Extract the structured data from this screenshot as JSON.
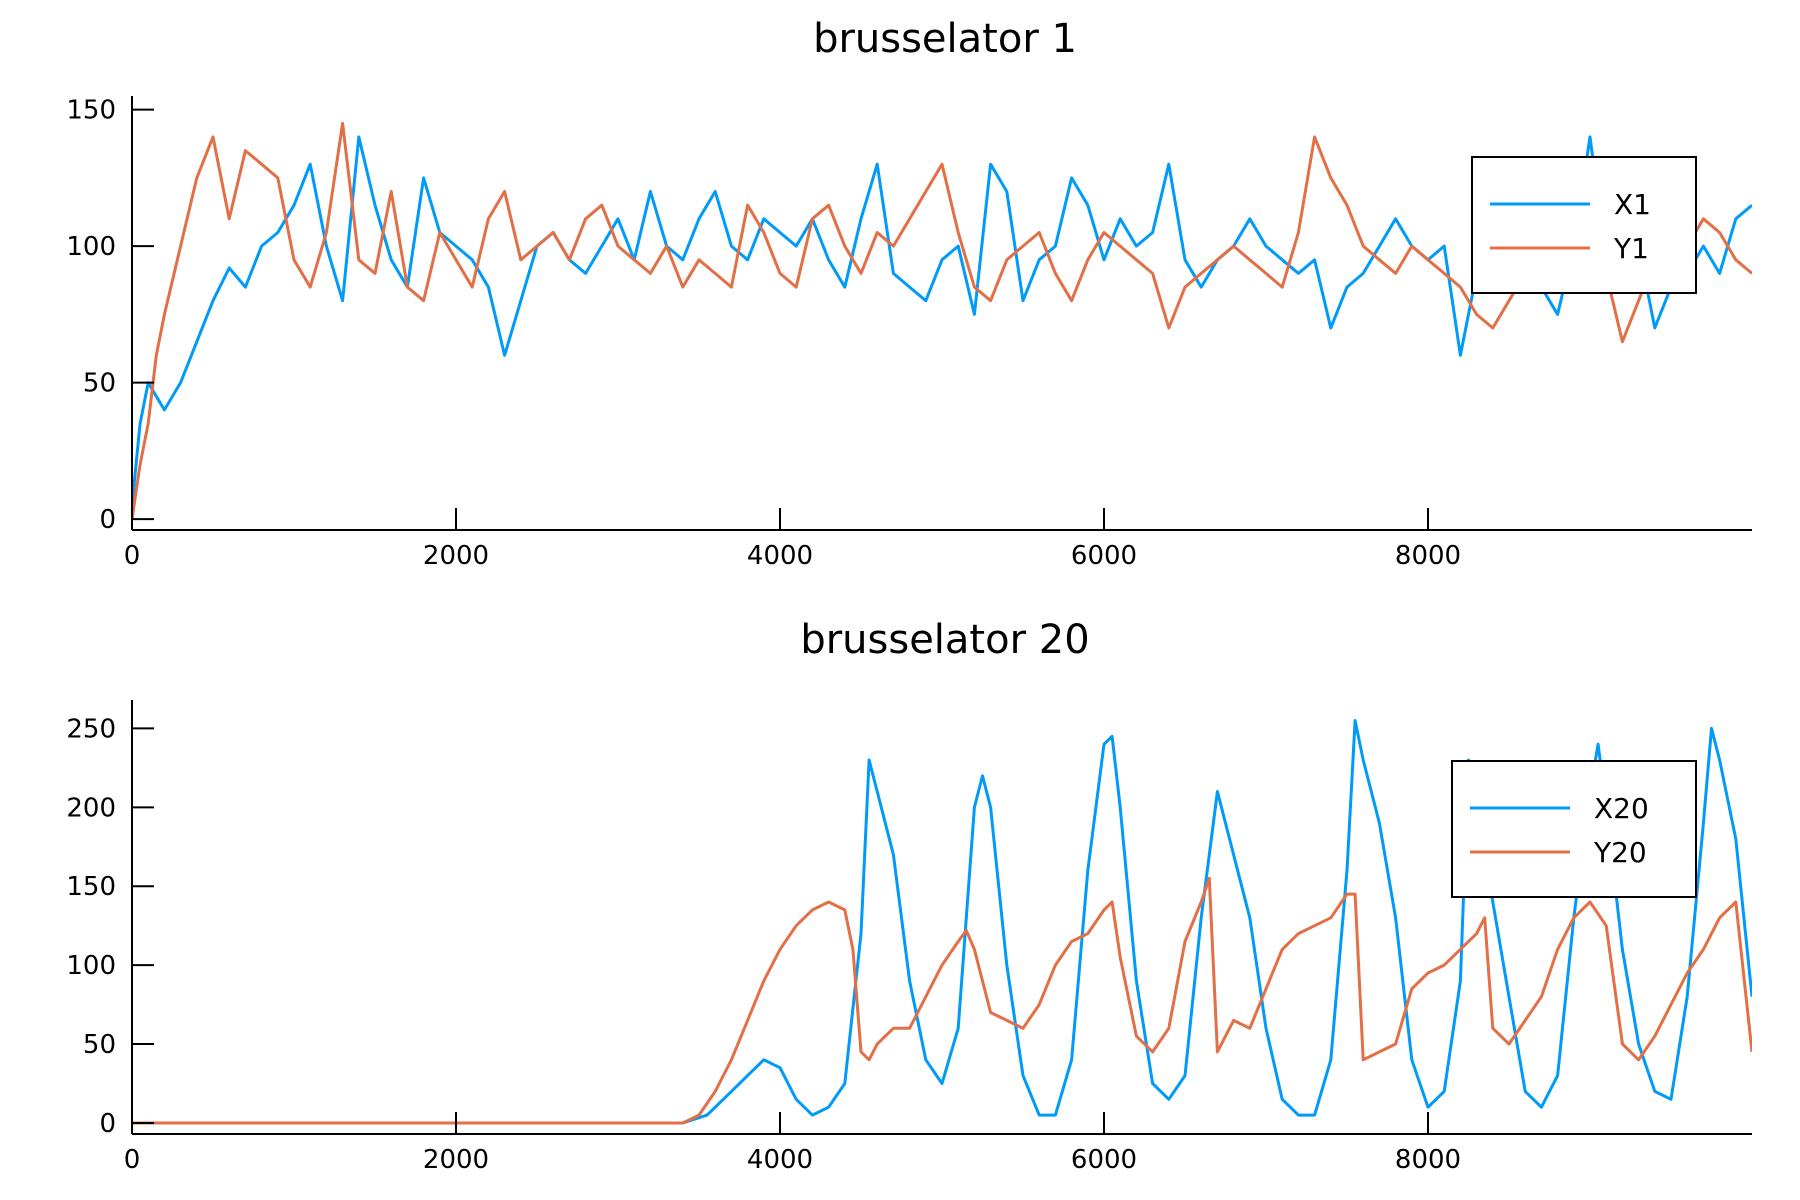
{
  "colors": {
    "X": "#009af9",
    "Y": "#e26f46",
    "axis": "#000000",
    "background": "#ffffff"
  },
  "chart_data": [
    {
      "type": "line",
      "title": "brusselator 1",
      "xlabel": "",
      "ylabel": "",
      "xlim": [
        0,
        10000
      ],
      "ylim": [
        -4,
        155
      ],
      "xticks": [
        0,
        2000,
        4000,
        6000,
        8000
      ],
      "xtick_labels": [
        "0",
        "2000",
        "4000",
        "6000",
        "8000"
      ],
      "yticks": [
        0,
        50,
        100,
        150
      ],
      "ytick_labels": [
        "0",
        "50",
        "100",
        "150"
      ],
      "grid": false,
      "legend_position": "top-right",
      "series": [
        {
          "name": "X1",
          "x": [
            0,
            50,
            100,
            150,
            200,
            300,
            400,
            500,
            600,
            700,
            800,
            900,
            1000,
            1100,
            1200,
            1300,
            1400,
            1500,
            1600,
            1700,
            1800,
            1900,
            2000,
            2100,
            2200,
            2300,
            2400,
            2500,
            2600,
            2700,
            2800,
            2900,
            3000,
            3100,
            3200,
            3300,
            3400,
            3500,
            3600,
            3700,
            3800,
            3900,
            4000,
            4100,
            4200,
            4300,
            4400,
            4500,
            4600,
            4700,
            4800,
            4900,
            5000,
            5100,
            5200,
            5300,
            5400,
            5500,
            5600,
            5700,
            5800,
            5900,
            6000,
            6100,
            6200,
            6300,
            6400,
            6500,
            6600,
            6700,
            6800,
            6900,
            7000,
            7100,
            7200,
            7300,
            7400,
            7500,
            7600,
            7700,
            7800,
            7900,
            8000,
            8100,
            8200,
            8300,
            8400,
            8500,
            8600,
            8700,
            8800,
            8900,
            9000,
            9100,
            9200,
            9300,
            9400,
            9500,
            9600,
            9700,
            9800,
            9900,
            10000
          ],
          "values": [
            5,
            35,
            50,
            45,
            40,
            50,
            65,
            80,
            92,
            85,
            100,
            105,
            115,
            130,
            100,
            80,
            140,
            115,
            95,
            85,
            125,
            105,
            100,
            95,
            85,
            60,
            80,
            100,
            105,
            95,
            90,
            100,
            110,
            95,
            120,
            100,
            95,
            110,
            120,
            100,
            95,
            110,
            105,
            100,
            110,
            95,
            85,
            110,
            130,
            90,
            85,
            80,
            95,
            100,
            75,
            130,
            120,
            80,
            95,
            100,
            125,
            115,
            95,
            110,
            100,
            105,
            130,
            95,
            85,
            95,
            100,
            110,
            100,
            95,
            90,
            95,
            70,
            85,
            90,
            100,
            110,
            100,
            95,
            100,
            60,
            90,
            125,
            95,
            100,
            85,
            75,
            100,
            140,
            95,
            85,
            100,
            70,
            85,
            90,
            100,
            90,
            110,
            115
          ]
        },
        {
          "name": "Y1",
          "x": [
            0,
            50,
            100,
            150,
            200,
            300,
            400,
            500,
            600,
            700,
            800,
            900,
            1000,
            1100,
            1200,
            1300,
            1400,
            1500,
            1600,
            1700,
            1800,
            1900,
            2000,
            2100,
            2200,
            2300,
            2400,
            2500,
            2600,
            2700,
            2800,
            2900,
            3000,
            3100,
            3200,
            3300,
            3400,
            3500,
            3600,
            3700,
            3800,
            3900,
            4000,
            4100,
            4200,
            4300,
            4400,
            4500,
            4600,
            4700,
            4800,
            4900,
            5000,
            5100,
            5200,
            5300,
            5400,
            5500,
            5600,
            5700,
            5800,
            5900,
            6000,
            6100,
            6200,
            6300,
            6400,
            6500,
            6600,
            6700,
            6800,
            6900,
            7000,
            7100,
            7200,
            7300,
            7400,
            7500,
            7600,
            7700,
            7800,
            7900,
            8000,
            8100,
            8200,
            8300,
            8400,
            8500,
            8600,
            8700,
            8800,
            8900,
            9000,
            9100,
            9200,
            9300,
            9400,
            9500,
            9600,
            9700,
            9800,
            9900,
            10000
          ],
          "values": [
            0,
            20,
            35,
            60,
            75,
            100,
            125,
            140,
            110,
            135,
            130,
            125,
            95,
            85,
            105,
            145,
            95,
            90,
            120,
            85,
            80,
            105,
            95,
            85,
            110,
            120,
            95,
            100,
            105,
            95,
            110,
            115,
            100,
            95,
            90,
            100,
            85,
            95,
            90,
            85,
            115,
            105,
            90,
            85,
            110,
            115,
            100,
            90,
            105,
            100,
            110,
            120,
            130,
            105,
            85,
            80,
            95,
            100,
            105,
            90,
            80,
            95,
            105,
            100,
            95,
            90,
            70,
            85,
            90,
            95,
            100,
            95,
            90,
            85,
            105,
            140,
            125,
            115,
            100,
            95,
            90,
            100,
            95,
            90,
            85,
            75,
            70,
            80,
            90,
            100,
            110,
            130,
            120,
            90,
            65,
            80,
            95,
            90,
            100,
            110,
            105,
            95,
            90
          ]
        }
      ]
    },
    {
      "type": "line",
      "title": "brusselator 20",
      "xlabel": "",
      "ylabel": "",
      "xlim": [
        0,
        10000
      ],
      "ylim": [
        -7,
        268
      ],
      "xticks": [
        0,
        2000,
        4000,
        6000,
        8000
      ],
      "xtick_labels": [
        "0",
        "2000",
        "4000",
        "6000",
        "8000"
      ],
      "yticks": [
        0,
        50,
        100,
        150,
        200,
        250
      ],
      "ytick_labels": [
        "0",
        "50",
        "100",
        "150",
        "200",
        "250"
      ],
      "grid": false,
      "legend_position": "top-right",
      "series": [
        {
          "name": "X20",
          "x": [
            0,
            2900,
            3400,
            3550,
            3700,
            3800,
            3900,
            4000,
            4100,
            4200,
            4300,
            4400,
            4500,
            4550,
            4600,
            4700,
            4800,
            4900,
            5000,
            5100,
            5200,
            5250,
            5300,
            5400,
            5500,
            5600,
            5700,
            5800,
            5900,
            6000,
            6050,
            6100,
            6200,
            6300,
            6400,
            6500,
            6600,
            6700,
            6800,
            6900,
            7000,
            7100,
            7200,
            7300,
            7400,
            7500,
            7550,
            7600,
            7700,
            7800,
            7900,
            8000,
            8100,
            8200,
            8250,
            8300,
            8400,
            8500,
            8600,
            8700,
            8800,
            8900,
            9000,
            9050,
            9100,
            9200,
            9300,
            9400,
            9500,
            9600,
            9700,
            9750,
            9800,
            9900,
            10000
          ],
          "values": [
            0,
            0,
            0,
            5,
            20,
            30,
            40,
            35,
            15,
            5,
            10,
            25,
            120,
            230,
            210,
            170,
            90,
            40,
            25,
            60,
            200,
            220,
            200,
            100,
            30,
            5,
            5,
            40,
            160,
            240,
            245,
            200,
            90,
            25,
            15,
            30,
            130,
            210,
            170,
            130,
            60,
            15,
            5,
            5,
            40,
            160,
            255,
            230,
            190,
            130,
            40,
            10,
            20,
            90,
            230,
            200,
            140,
            80,
            20,
            10,
            30,
            130,
            210,
            240,
            200,
            110,
            50,
            20,
            15,
            80,
            190,
            250,
            230,
            180,
            80
          ]
        },
        {
          "name": "Y20",
          "x": [
            0,
            3400,
            3500,
            3600,
            3700,
            3800,
            3900,
            4000,
            4100,
            4200,
            4300,
            4400,
            4450,
            4500,
            4550,
            4600,
            4700,
            4800,
            4900,
            5000,
            5100,
            5150,
            5200,
            5300,
            5400,
            5500,
            5600,
            5700,
            5800,
            5900,
            6000,
            6050,
            6100,
            6200,
            6300,
            6400,
            6500,
            6600,
            6650,
            6700,
            6800,
            6900,
            7000,
            7100,
            7200,
            7300,
            7400,
            7500,
            7550,
            7600,
            7700,
            7800,
            7900,
            8000,
            8100,
            8200,
            8300,
            8350,
            8400,
            8500,
            8600,
            8700,
            8800,
            8900,
            9000,
            9100,
            9200,
            9300,
            9400,
            9500,
            9600,
            9700,
            9800,
            9900,
            10000
          ],
          "values": [
            0,
            0,
            5,
            20,
            40,
            65,
            90,
            110,
            125,
            135,
            140,
            135,
            110,
            45,
            40,
            50,
            60,
            60,
            80,
            100,
            115,
            122,
            110,
            70,
            65,
            60,
            75,
            100,
            115,
            120,
            135,
            140,
            105,
            55,
            45,
            60,
            115,
            140,
            155,
            45,
            65,
            60,
            85,
            110,
            120,
            125,
            130,
            145,
            145,
            40,
            45,
            50,
            85,
            95,
            100,
            110,
            120,
            130,
            60,
            50,
            65,
            80,
            110,
            130,
            140,
            125,
            50,
            40,
            55,
            75,
            95,
            110,
            130,
            140,
            45
          ]
        }
      ]
    }
  ]
}
